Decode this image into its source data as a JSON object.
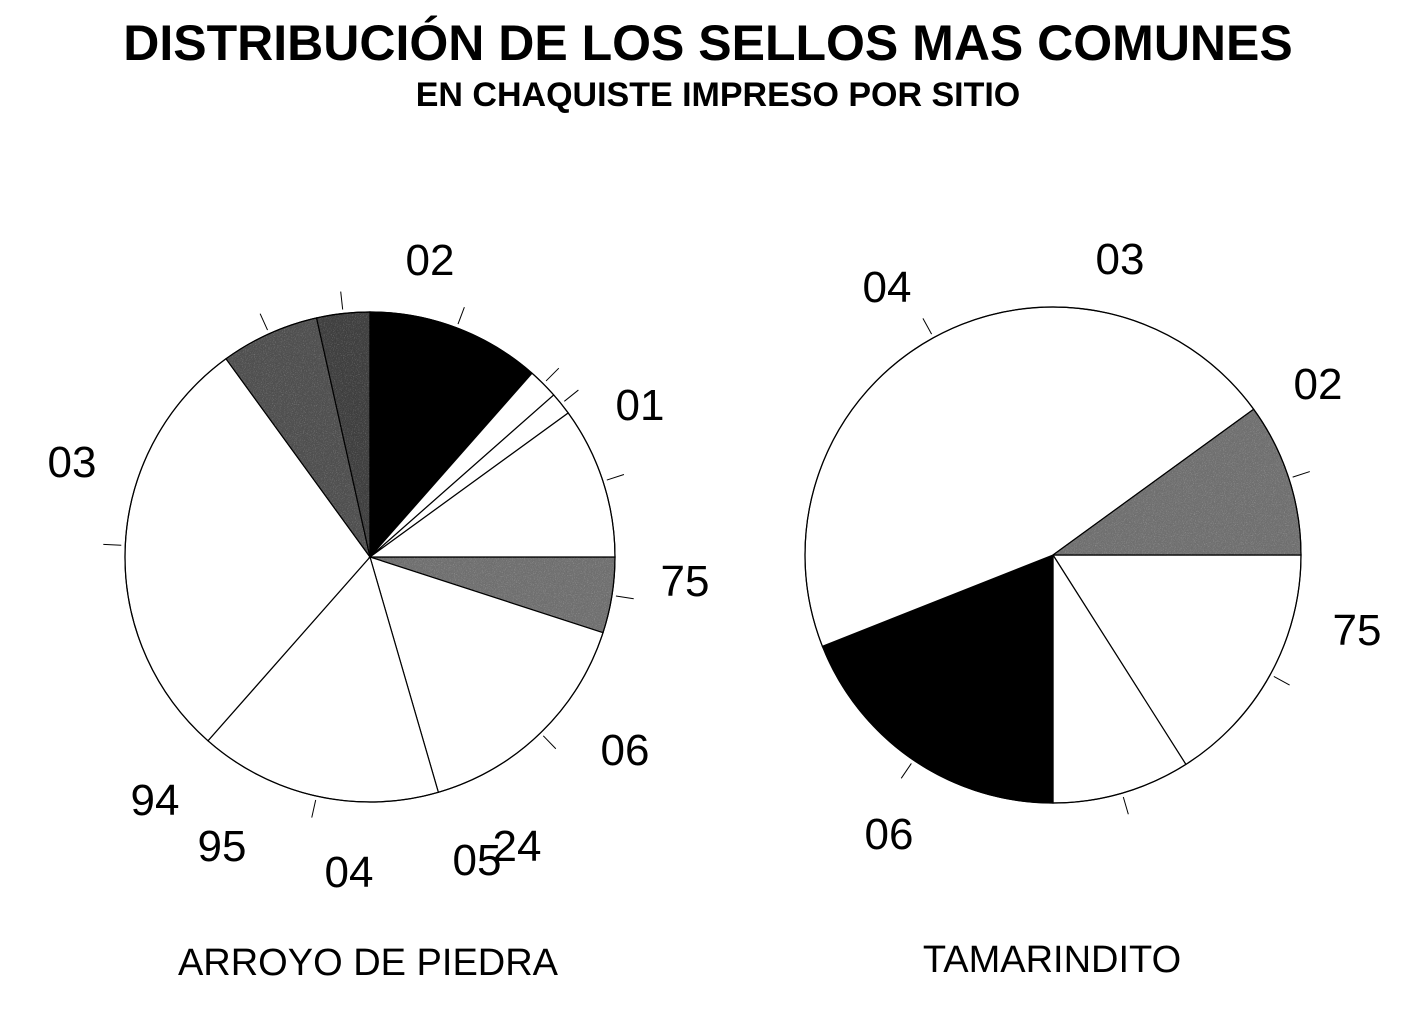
{
  "chart_data": {
    "type": "pie",
    "title": "DISTRIBUCIÓN DE LOS SELLOS MAS COMUNES",
    "subtitle": "EN CHAQUISTE IMPRESO POR SITIO",
    "pies": [
      {
        "label": "ARROYO DE PIEDRA",
        "slices": [
          {
            "name": "75",
            "value": 5.0,
            "fill": "#777777"
          },
          {
            "name": "01",
            "value": 15.5,
            "fill": "#ffffff"
          },
          {
            "name": "02",
            "value": 16.0,
            "fill": "#ffffff"
          },
          {
            "name": "03",
            "value": 28.5,
            "fill": "#ffffff"
          },
          {
            "name": "94",
            "value": 6.5,
            "fill": "#555555"
          },
          {
            "name": "95",
            "value": 3.5,
            "fill": "#444444"
          },
          {
            "name": "04",
            "value": 11.5,
            "fill": "#000000"
          },
          {
            "name": "05",
            "value": 2.0,
            "fill": "#ffffff"
          },
          {
            "name": "24",
            "value": 1.5,
            "fill": "#ffffff"
          },
          {
            "name": "06",
            "value": 10.0,
            "fill": "#ffffff"
          }
        ]
      },
      {
        "label": "TAMARINDITO",
        "slices": [
          {
            "name": "02",
            "value": 16.0,
            "fill": "#ffffff"
          },
          {
            "name": "03",
            "value": 9.0,
            "fill": "#ffffff"
          },
          {
            "name": "04",
            "value": 19.0,
            "fill": "#000000"
          },
          {
            "name": "06",
            "value": 46.0,
            "fill": "#ffffff"
          },
          {
            "name": "75",
            "value": 10.0,
            "fill": "#777777"
          }
        ]
      }
    ]
  }
}
